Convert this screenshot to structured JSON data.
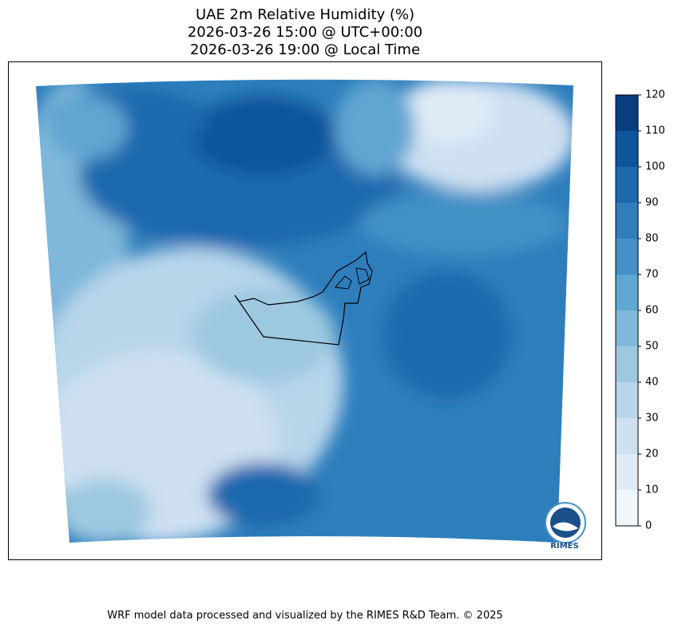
{
  "title": [
    "UAE 2m Relative Humidity (%)",
    "2026-03-26 15:00 @ UTC+00:00",
    "2026-03-26 19:00 @ Local Time"
  ],
  "colorbar": {
    "lim": [
      0,
      120
    ],
    "ticks": [
      0,
      10,
      20,
      30,
      40,
      50,
      60,
      70,
      80,
      90,
      100,
      110,
      120
    ],
    "colors": [
      "#eff6fc",
      "#deebf7",
      "#cee0f2",
      "#b8d5ea",
      "#9dc9e0",
      "#7fb8da",
      "#60a6d2",
      "#4391c6",
      "#2e7ebc",
      "#1c69af",
      "#0d549c",
      "#083d7f"
    ]
  },
  "logo": "RIMES",
  "footer": "WRF model data processed and visualized by the RIMES R&D Team. © 2025"
}
